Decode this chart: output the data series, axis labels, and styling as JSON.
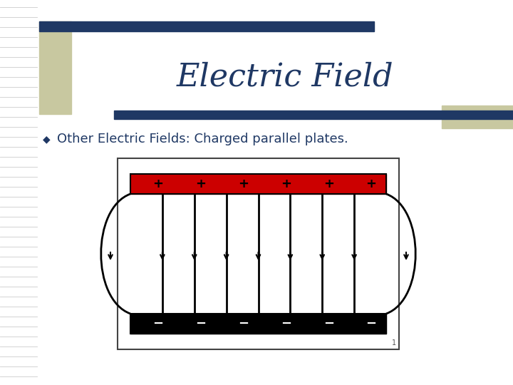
{
  "title": "Electric Field",
  "title_color": "#1F3864",
  "title_fontsize": 32,
  "bullet_text": "Other Electric Fields: Charged parallel plates.",
  "bullet_fontsize": 13,
  "bg_color": "#ffffff",
  "accent_tan": "#C8C8A0",
  "accent_navy": "#1F3864",
  "diagram": {
    "pos_plate_color": "#CC0000",
    "neg_plate_color": "#000000",
    "n_plus_signs": 6,
    "n_minus_signs": 6,
    "n_inner_lines": 7,
    "field_line_lw": 2.0
  }
}
